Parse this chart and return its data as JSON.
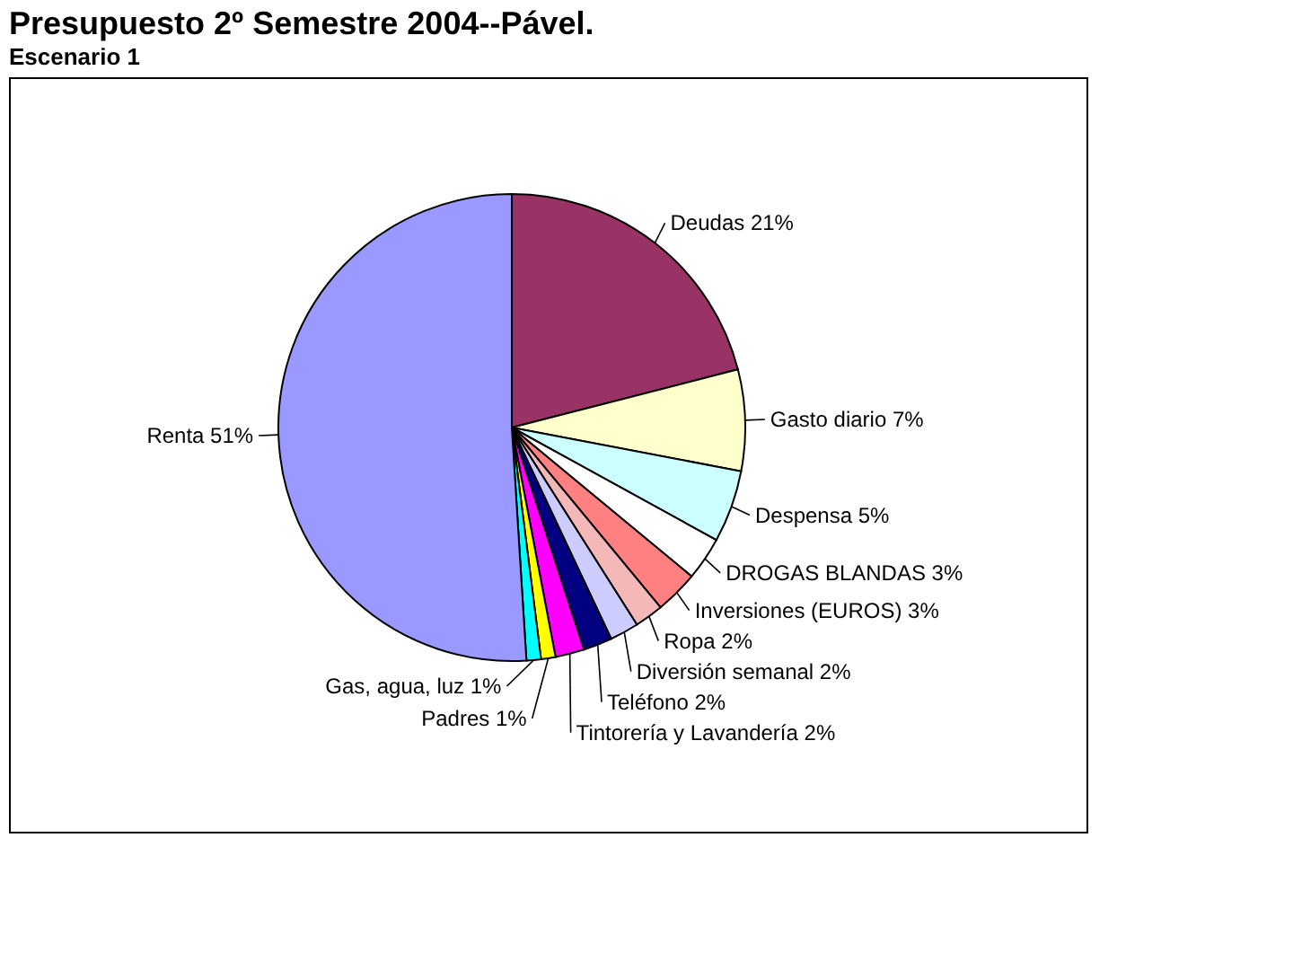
{
  "chart_data": {
    "type": "pie",
    "title": "Presupuesto 2º Semestre 2004--Pável.",
    "subtitle": "Escenario 1",
    "categories": [
      "Deudas",
      "Gasto diario",
      "Despensa",
      "DROGAS BLANDAS",
      "Inversiones (EUROS)",
      "Ropa",
      "Diversión semanal",
      "Teléfono",
      "Tintorería y Lavandería",
      "Padres",
      "Gas, agua, luz",
      "Renta"
    ],
    "values": [
      21,
      7,
      5,
      3,
      3,
      2,
      2,
      2,
      2,
      1,
      1,
      51
    ],
    "value_labels": [
      "21%",
      "7%",
      "5%",
      "3%",
      "3%",
      "2%",
      "2%",
      "2%",
      "2%",
      "1%",
      "1%",
      "51%"
    ],
    "colors": [
      "#993366",
      "#ffffcc",
      "#ccffff",
      "#ffffff",
      "#ff8080",
      "#f4b8b8",
      "#ccccff",
      "#000080",
      "#ff00ff",
      "#ffff00",
      "#00ffff",
      "#9999ff"
    ],
    "legend": false
  }
}
